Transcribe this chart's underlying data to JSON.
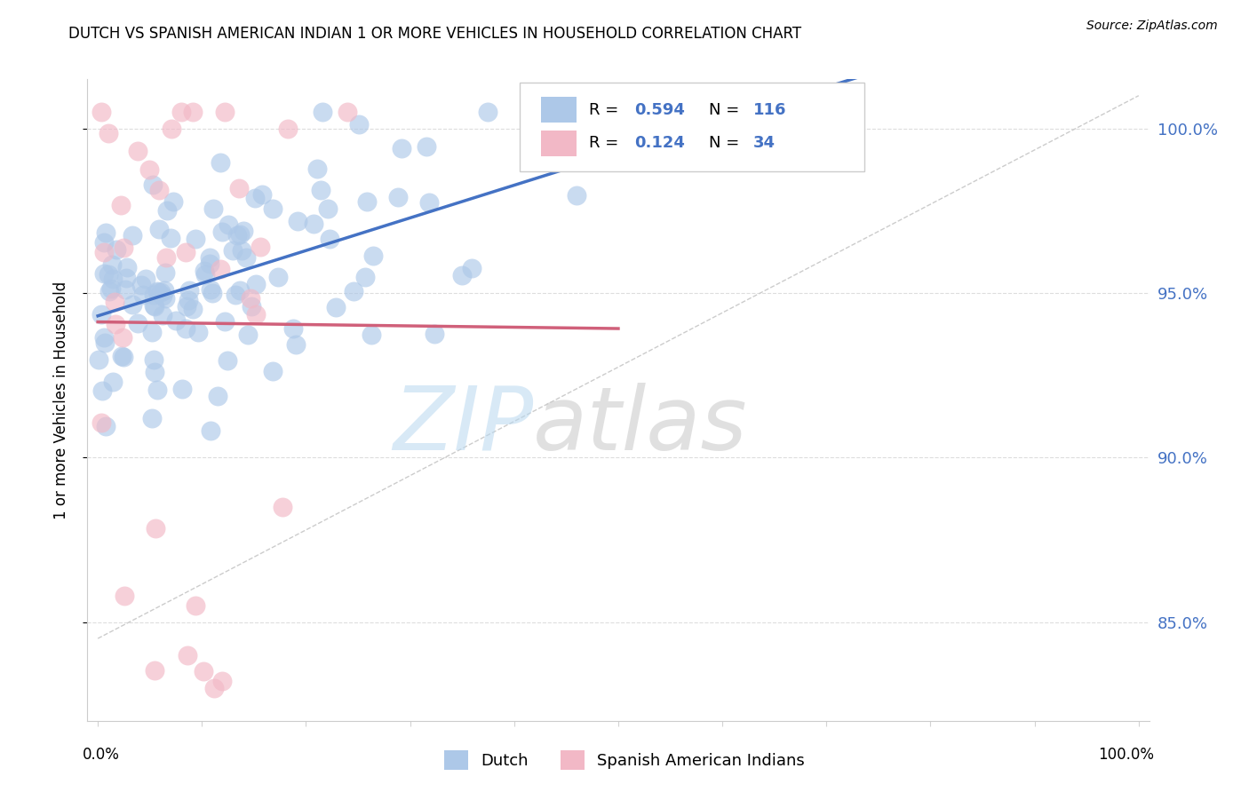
{
  "title": "DUTCH VS SPANISH AMERICAN INDIAN 1 OR MORE VEHICLES IN HOUSEHOLD CORRELATION CHART",
  "source": "Source: ZipAtlas.com",
  "ylabel": "1 or more Vehicles in Household",
  "watermark_zip": "ZIP",
  "watermark_atlas": "atlas",
  "blue_label": "Dutch",
  "pink_label": "Spanish American Indians",
  "blue_R": 0.594,
  "blue_N": 116,
  "pink_R": 0.124,
  "pink_N": 34,
  "blue_color": "#adc8e8",
  "pink_color": "#f2b8c6",
  "blue_line_color": "#4472c4",
  "pink_line_color": "#d0607a",
  "ytick_positions": [
    85.0,
    90.0,
    95.0,
    100.0
  ],
  "ytick_labels": [
    "85.0%",
    "90.0%",
    "95.0%",
    "100.0%"
  ],
  "ymin": 82.0,
  "ymax": 101.5,
  "xmin": -0.01,
  "xmax": 1.01
}
